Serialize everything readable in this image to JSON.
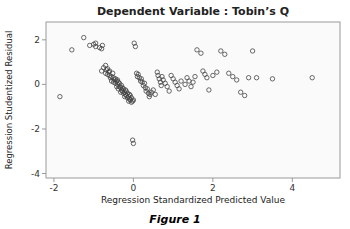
{
  "chart_data": {
    "type": "scatter",
    "title": "Dependent Variable : Tobin’s Q",
    "xlabel": "Regression Standardized Predicted Value",
    "ylabel": "Regression Studentized Residual",
    "caption": "Figure 1",
    "xlim": [
      -2.2,
      5.2
    ],
    "ylim": [
      -4.2,
      2.8
    ],
    "xticks": [
      -2,
      0,
      2,
      4
    ],
    "yticks": [
      -4,
      -2,
      0,
      2
    ],
    "grid": false,
    "color": "#444444",
    "marker": "open-circle",
    "x": [
      -1.85,
      -1.55,
      -1.25,
      -1.1,
      -1.0,
      -0.95,
      -0.95,
      -0.85,
      -0.8,
      -0.8,
      -0.78,
      -0.75,
      -0.7,
      -0.7,
      -0.68,
      -0.65,
      -0.65,
      -0.62,
      -0.6,
      -0.6,
      -0.58,
      -0.55,
      -0.55,
      -0.52,
      -0.5,
      -0.5,
      -0.48,
      -0.45,
      -0.45,
      -0.42,
      -0.42,
      -0.4,
      -0.4,
      -0.38,
      -0.38,
      -0.35,
      -0.35,
      -0.32,
      -0.32,
      -0.3,
      -0.3,
      -0.28,
      -0.28,
      -0.25,
      -0.25,
      -0.22,
      -0.22,
      -0.2,
      -0.2,
      -0.18,
      -0.18,
      -0.15,
      -0.15,
      -0.12,
      -0.12,
      -0.1,
      -0.1,
      -0.08,
      -0.08,
      -0.05,
      -0.05,
      -0.02,
      -0.02,
      0.0,
      0.0,
      0.02,
      0.05,
      0.08,
      0.1,
      0.12,
      0.15,
      0.18,
      0.2,
      0.22,
      0.25,
      0.28,
      0.3,
      0.32,
      0.35,
      0.38,
      0.4,
      0.42,
      0.45,
      0.5,
      0.55,
      0.6,
      0.62,
      0.65,
      0.68,
      0.7,
      0.72,
      0.75,
      0.8,
      0.85,
      0.9,
      0.95,
      1.0,
      1.05,
      1.1,
      1.15,
      1.2,
      1.3,
      1.35,
      1.4,
      1.45,
      1.5,
      1.55,
      1.6,
      1.7,
      1.75,
      1.8,
      1.85,
      1.9,
      2.0,
      2.1,
      2.2,
      2.3,
      2.4,
      2.5,
      2.6,
      2.7,
      2.8,
      2.9,
      3.0,
      3.1,
      3.5,
      4.5
    ],
    "values": [
      -0.55,
      1.55,
      2.1,
      1.75,
      1.8,
      1.85,
      1.7,
      1.65,
      1.6,
      0.6,
      1.75,
      0.75,
      0.5,
      0.85,
      0.65,
      0.7,
      0.45,
      0.55,
      0.4,
      0.6,
      0.3,
      0.35,
      0.15,
      0.5,
      0.3,
      0.1,
      0.2,
      0.05,
      0.25,
      0.15,
      -0.1,
      0.0,
      0.2,
      -0.2,
      0.1,
      -0.1,
      0.05,
      -0.15,
      -0.35,
      -0.05,
      -0.25,
      -0.3,
      -0.15,
      -0.2,
      -0.4,
      -0.35,
      -0.55,
      -0.45,
      -0.25,
      -0.5,
      -0.3,
      -0.6,
      -0.4,
      -0.55,
      -0.75,
      -0.65,
      -0.45,
      -0.7,
      -0.5,
      -0.6,
      -0.8,
      -0.75,
      -2.5,
      -2.65,
      -0.7,
      1.85,
      1.7,
      0.5,
      0.35,
      0.45,
      0.3,
      0.15,
      0.25,
      0.1,
      -0.05,
      0.05,
      -0.15,
      -0.3,
      -0.2,
      -0.4,
      -0.55,
      -0.45,
      -0.35,
      -0.25,
      -0.45,
      0.55,
      0.4,
      0.25,
      0.1,
      -0.05,
      0.35,
      0.2,
      0.05,
      -0.1,
      -0.3,
      0.4,
      0.25,
      0.1,
      -0.05,
      -0.2,
      0.15,
      0.0,
      0.3,
      0.15,
      -0.1,
      0.1,
      0.35,
      1.55,
      1.4,
      0.6,
      0.45,
      0.3,
      -0.25,
      0.4,
      0.55,
      1.5,
      1.35,
      0.5,
      0.35,
      0.2,
      -0.35,
      -0.5,
      0.3,
      1.5,
      0.3,
      0.25,
      0.3
    ]
  }
}
